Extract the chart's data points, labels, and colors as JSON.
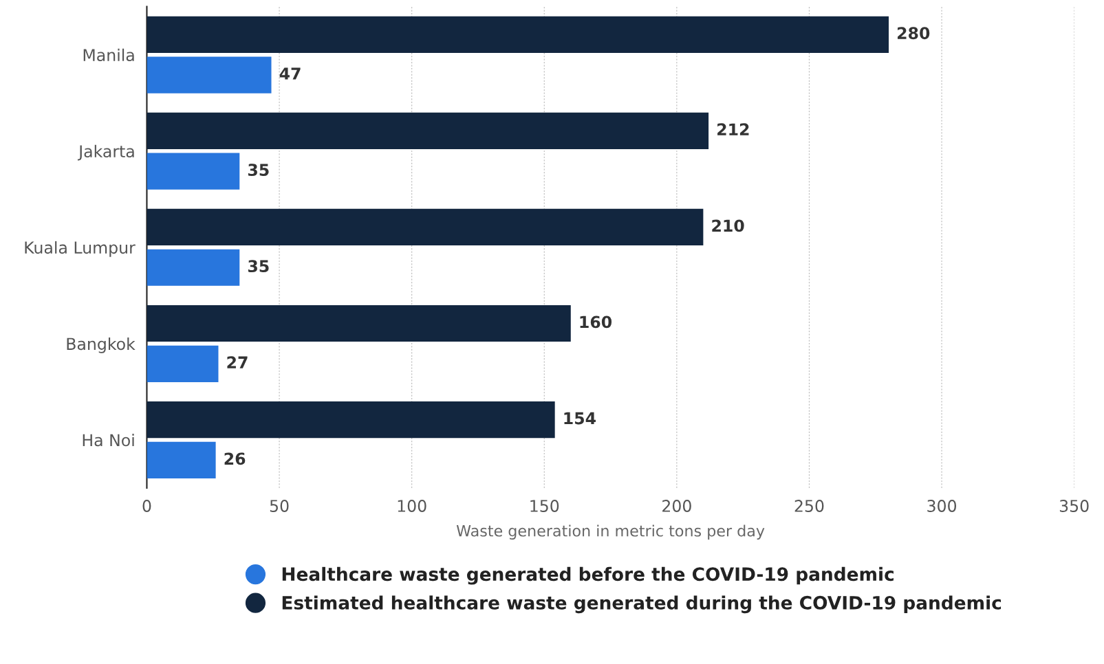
{
  "chart_data": {
    "type": "bar",
    "orientation": "horizontal",
    "xlabel": "Waste generation in metric tons per day",
    "categories": [
      "Manila",
      "Jakarta",
      "Kuala Lumpur",
      "Bangkok",
      "Ha Noi"
    ],
    "series": [
      {
        "name": "Healthcare waste generated before the COVID-19 pandemic",
        "color": "#2876dd",
        "values": [
          47,
          35,
          35,
          27,
          26
        ]
      },
      {
        "name": "Estimated healthcare waste generated during the COVID-19 pandemic",
        "color": "#12263f",
        "values": [
          280,
          212,
          210,
          160,
          154
        ]
      }
    ],
    "xlim": [
      0,
      350
    ],
    "xticks": [
      0,
      50,
      100,
      150,
      200,
      250,
      300,
      350
    ],
    "grid": "x",
    "data_labels": true,
    "legend": "bottom"
  }
}
